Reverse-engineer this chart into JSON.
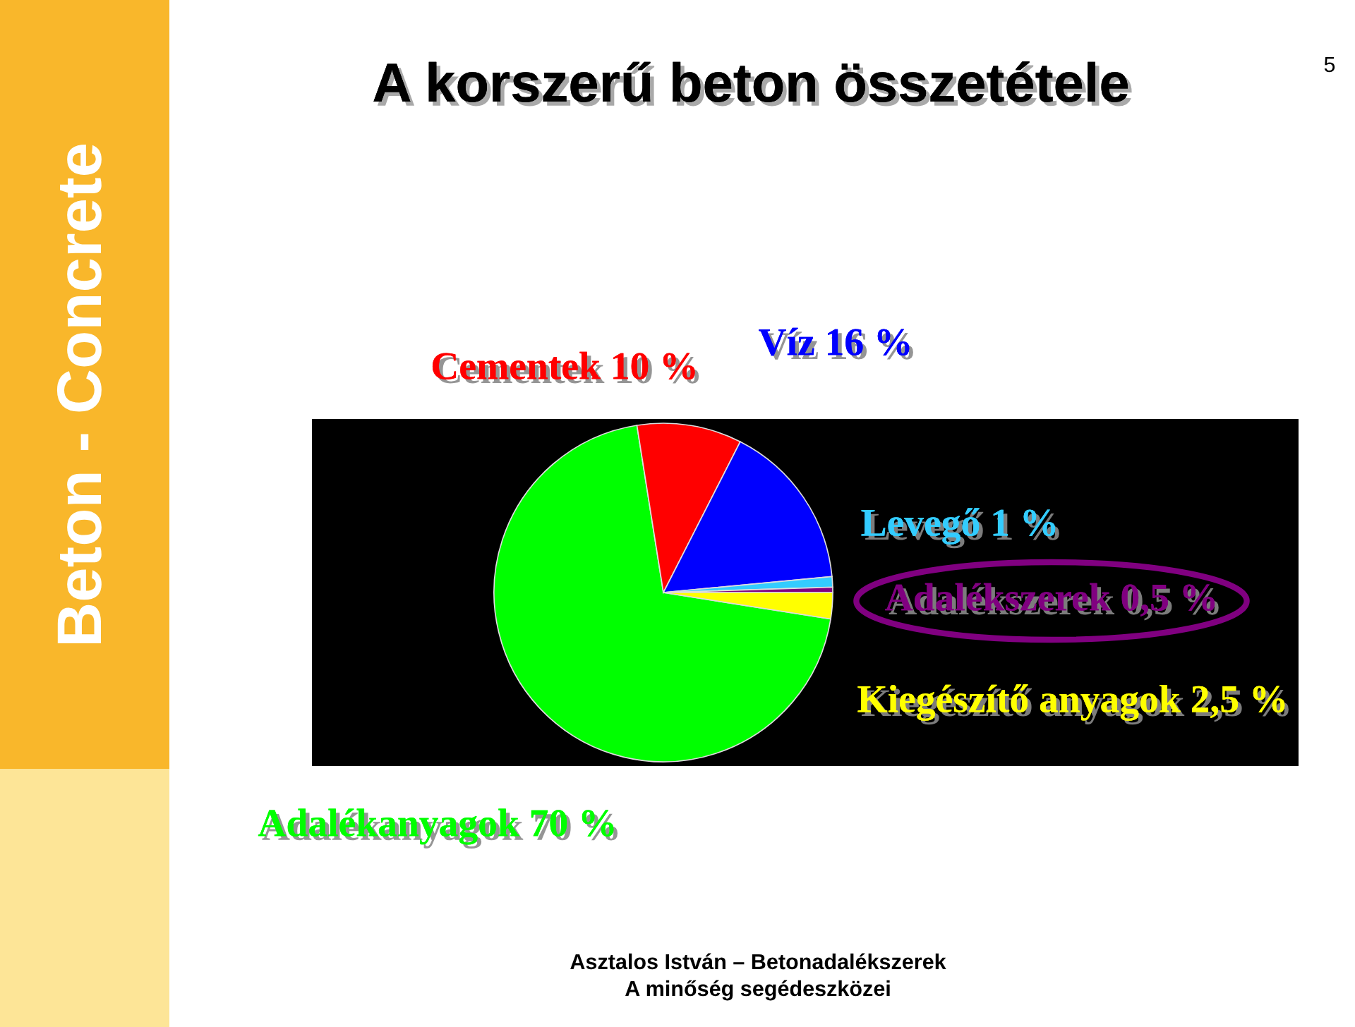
{
  "chart_data": {
    "type": "pie",
    "title": "A korszerű beton összetétele",
    "categories": [
      "Adalékanyagok",
      "Cementek",
      "Víz",
      "Levegő",
      "Adalékszerek",
      "Kiegészítő anyagok"
    ],
    "values": [
      70,
      10,
      16,
      1,
      0.5,
      2.5
    ],
    "value_labels": [
      "70 %",
      "10 %",
      "16 %",
      "1 %",
      "0,5 %",
      "2,5 %"
    ],
    "colors": [
      "#00ff00",
      "#ff0000",
      "#0000ff",
      "#33ccff",
      "#800080",
      "#ffff00"
    ],
    "annotations": [
      "Beton - Concrete",
      "5",
      "Asztalos István – Betonadalékszerek",
      "A minőség segédeszközei"
    ]
  }
}
